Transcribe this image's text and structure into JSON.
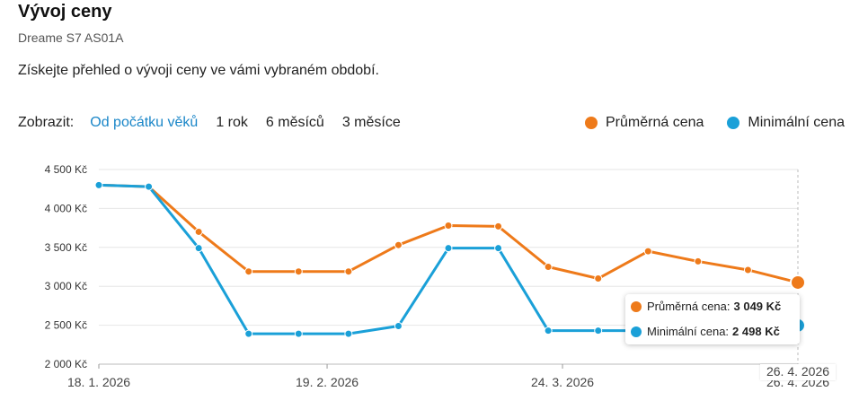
{
  "header": {
    "title": "Vývoj ceny",
    "subtitle": "Dreame S7 AS01A",
    "description": "Získejte přehled o vývoji ceny ve vámi vybraném období."
  },
  "filters": {
    "label": "Zobrazit:",
    "options": [
      "Od počátku věků",
      "1 rok",
      "6 měsíců",
      "3 měsíce"
    ],
    "active_index": 0,
    "active_color": "#1a86c8"
  },
  "legend": {
    "items": [
      {
        "name": "Průměrná cena",
        "color": "#ee7a1a"
      },
      {
        "name": "Minimální cena",
        "color": "#1aa0d8"
      }
    ]
  },
  "tooltip": {
    "avg_label": "Průměrná cena:",
    "avg_value": "3 049 Kč",
    "min_label": "Minimální cena:",
    "min_value": "2 498 Kč",
    "date": "26. 4. 2026"
  },
  "chart_data": {
    "type": "line",
    "y_tick_labels": [
      "4 500 Kč",
      "4 000 Kč",
      "3 500 Kč",
      "3 000 Kč",
      "2 500 Kč",
      "2 000 Kč"
    ],
    "y_ticks": [
      4500,
      4000,
      3500,
      3000,
      2500,
      2000
    ],
    "ylim": [
      2000,
      4500
    ],
    "x_tick_labels": [
      "18. 1. 2026",
      "19. 2. 2026",
      "24. 3. 2026",
      "26. 4. 2026"
    ],
    "x_ticks": [
      "2026-01-18",
      "2026-02-19",
      "2026-03-24",
      "2026-04-26"
    ],
    "xlim": [
      "2026-01-18",
      "2026-04-26"
    ],
    "grid": true,
    "series": [
      {
        "name": "Průměrná cena",
        "color": "#ee7a1a",
        "points": [
          {
            "date": "2026-01-18",
            "value": 4300
          },
          {
            "date": "2026-01-25",
            "value": 4280
          },
          {
            "date": "2026-02-01",
            "value": 3700
          },
          {
            "date": "2026-02-08",
            "value": 3190
          },
          {
            "date": "2026-02-15",
            "value": 3190
          },
          {
            "date": "2026-02-22",
            "value": 3190
          },
          {
            "date": "2026-03-01",
            "value": 3530
          },
          {
            "date": "2026-03-08",
            "value": 3780
          },
          {
            "date": "2026-03-15",
            "value": 3770
          },
          {
            "date": "2026-03-22",
            "value": 3250
          },
          {
            "date": "2026-03-29",
            "value": 3100
          },
          {
            "date": "2026-04-05",
            "value": 3450
          },
          {
            "date": "2026-04-12",
            "value": 3320
          },
          {
            "date": "2026-04-19",
            "value": 3210
          },
          {
            "date": "2026-04-26",
            "value": 3049
          }
        ]
      },
      {
        "name": "Minimální cena",
        "color": "#1aa0d8",
        "points": [
          {
            "date": "2026-01-18",
            "value": 4300
          },
          {
            "date": "2026-01-25",
            "value": 4280
          },
          {
            "date": "2026-02-01",
            "value": 3490
          },
          {
            "date": "2026-02-08",
            "value": 2390
          },
          {
            "date": "2026-02-15",
            "value": 2390
          },
          {
            "date": "2026-02-22",
            "value": 2390
          },
          {
            "date": "2026-03-01",
            "value": 2490
          },
          {
            "date": "2026-03-08",
            "value": 3490
          },
          {
            "date": "2026-03-15",
            "value": 3490
          },
          {
            "date": "2026-03-22",
            "value": 2430
          },
          {
            "date": "2026-03-29",
            "value": 2430
          },
          {
            "date": "2026-04-05",
            "value": 2430
          },
          {
            "date": "2026-04-12",
            "value": 2430
          },
          {
            "date": "2026-04-19",
            "value": 2440
          },
          {
            "date": "2026-04-26",
            "value": 2498
          }
        ]
      }
    ]
  }
}
